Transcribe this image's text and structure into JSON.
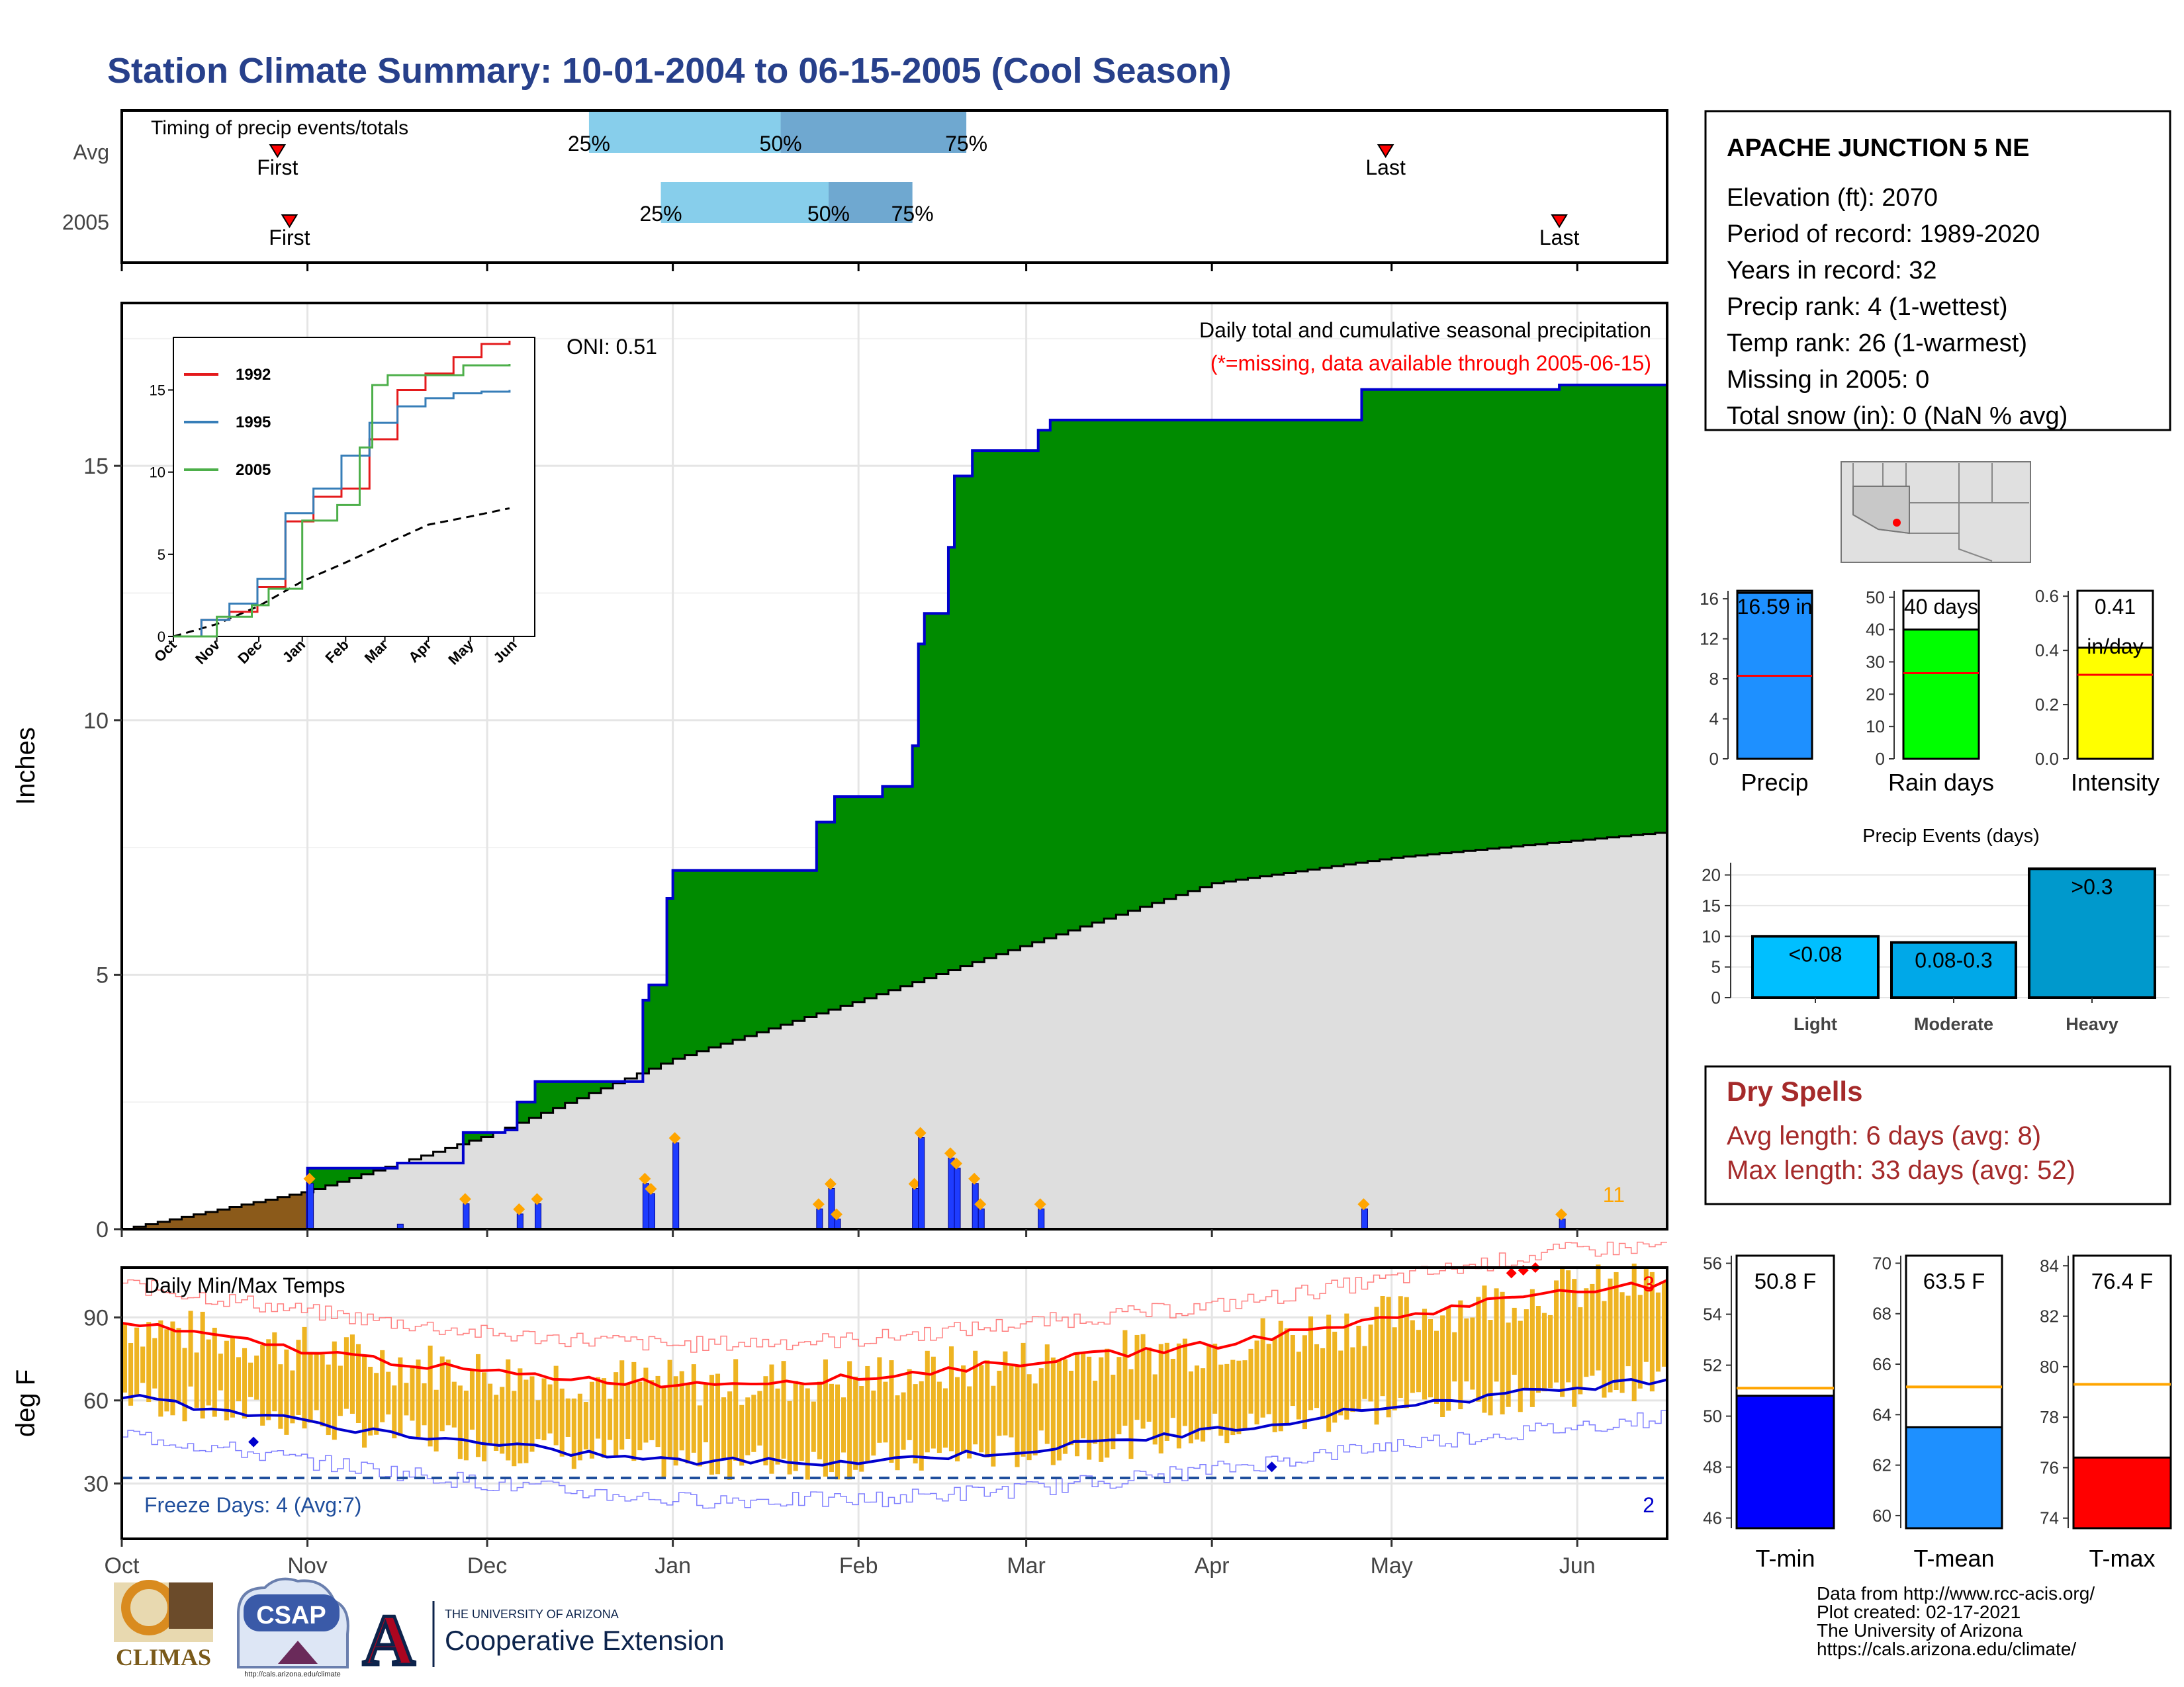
{
  "title": "Station Climate Summary: 10-01-2004 to 06-15-2005 (Cool Season)",
  "timing_panel": {
    "label": "Timing of precip events/totals",
    "rows": [
      {
        "name": "Avg",
        "first": "2004-10-27",
        "last": "2005-04-30",
        "q25": "2004-12-18",
        "q50": "2005-01-19",
        "q75": "2005-02-19"
      },
      {
        "name": "2005",
        "first": "2004-10-29",
        "last": "2005-05-29",
        "q25": "2004-12-30",
        "q50": "2005-01-27",
        "q75": "2005-02-10"
      }
    ],
    "first_label": "First",
    "last_label": "Last",
    "q_labels": [
      "25%",
      "50%",
      "75%"
    ]
  },
  "main_panel": {
    "ylabel": "Inches",
    "subtitle": "Daily total and cumulative seasonal precipitation",
    "missing_note": "(*=missing, data available through 2005-06-15)",
    "oni": "ONI: 0.51",
    "count_label": "11",
    "yticks": [
      "0",
      "5",
      "10",
      "15"
    ],
    "xticks": [
      "Oct",
      "Nov",
      "Dec",
      "Jan",
      "Feb",
      "Mar",
      "Apr",
      "May",
      "Jun"
    ]
  },
  "inset": {
    "legend": [
      "1992",
      "1995",
      "2005"
    ],
    "yticks": [
      "0",
      "5",
      "10",
      "15"
    ],
    "xticks": [
      "Oct",
      "Nov",
      "Dec",
      "Jan",
      "Feb",
      "Mar",
      "Apr",
      "May",
      "Jun"
    ]
  },
  "temp_panel": {
    "label": "Daily Min/Max Temps",
    "ylabel": "deg F",
    "yticks": [
      "30",
      "60",
      "90"
    ],
    "freeze_text": "Freeze Days: 4 (Avg:7)",
    "max_count": "3",
    "min_count": "2"
  },
  "station": {
    "name": "APACHE JUNCTION 5 NE",
    "lines": [
      "Elevation (ft): 2070",
      "Period of record: 1989-2020",
      "Years in record: 32",
      "Precip rank: 4 (1-wettest)",
      "Temp rank: 26 (1-warmest)",
      "Missing in 2005: 0",
      "Total snow (in): 0 (NaN % avg)"
    ]
  },
  "mini_bars": [
    {
      "name": "Precip",
      "value": 16.59,
      "avg": 8.3,
      "label": "16.59 in",
      "color": "#1e90ff",
      "ticks": [
        "0",
        "4",
        "8",
        "12",
        "16"
      ],
      "max": 16.8
    },
    {
      "name": "Rain days",
      "value": 40,
      "avg": 26.5,
      "label": "40 days",
      "color": "#00ff00",
      "ticks": [
        "0",
        "10",
        "20",
        "30",
        "40",
        "50"
      ],
      "max": 52
    },
    {
      "name": "Intensity",
      "value": 0.41,
      "avg": 0.31,
      "label": "0.41",
      "unit": "in/day",
      "color": "#ffff00",
      "ticks": [
        "0.0",
        "0.2",
        "0.4",
        "0.6"
      ],
      "max": 0.62
    }
  ],
  "events": {
    "title": "Precip Events (days)",
    "yticks": [
      "0",
      "5",
      "10",
      "15",
      "20"
    ],
    "categories": [
      "Light",
      "Moderate",
      "Heavy"
    ],
    "labels": [
      "<0.08",
      "0.08-0.3",
      ">0.3"
    ],
    "values": [
      10,
      9,
      21
    ],
    "colors": [
      "#00bfff",
      "#00a8e8",
      "#0099cc"
    ]
  },
  "dry_spells": {
    "title": "Dry Spells",
    "lines": [
      "Avg length: 6 days (avg: 8)",
      "Max length: 33 days (avg: 52)"
    ]
  },
  "temp_bars": [
    {
      "name": "T-min",
      "label": "50.8 F",
      "value": 50.8,
      "avg": 51.1,
      "color": "#0000ff",
      "ticks": [
        "46",
        "48",
        "50",
        "52",
        "54",
        "56"
      ],
      "min": 45.6,
      "max": 56.3
    },
    {
      "name": "T-mean",
      "label": "63.5 F",
      "value": 63.5,
      "avg": 65.1,
      "color": "#1e90ff",
      "ticks": [
        "60",
        "62",
        "64",
        "66",
        "68",
        "70"
      ],
      "min": 59.5,
      "max": 70.3
    },
    {
      "name": "T-max",
      "label": "76.4 F",
      "value": 76.4,
      "avg": 79.3,
      "color": "#ff0000",
      "ticks": [
        "74",
        "76",
        "78",
        "80",
        "82",
        "84"
      ],
      "min": 73.6,
      "max": 84.4
    }
  ],
  "footer": [
    "Data from http://www.rcc-acis.org/",
    "Plot created: 02-17-2021",
    "The University of Arizona",
    "https://cals.arizona.edu/climate/"
  ],
  "logos": {
    "climas": "CLIMAS",
    "csap": "CSAP",
    "csap_url": "http://cals.arizona.edu/climate",
    "ua_small": "THE UNIVERSITY OF ARIZONA",
    "ua_big": "Cooperative Extension"
  },
  "chart_data": {
    "type": "area",
    "title": "Daily total and cumulative seasonal precipitation",
    "ylabel": "Inches",
    "ylim": [
      0,
      18.2
    ],
    "x_start": "2004-10-01",
    "x_end": "2005-06-15",
    "cumulative_2005": [
      {
        "date": "2004-10-31",
        "value": 0.0
      },
      {
        "date": "2004-11-01",
        "value": 1.2
      },
      {
        "date": "2004-11-16",
        "value": 1.3
      },
      {
        "date": "2004-11-27",
        "value": 1.9
      },
      {
        "date": "2004-12-04",
        "value": 1.95
      },
      {
        "date": "2004-12-06",
        "value": 2.5
      },
      {
        "date": "2004-12-09",
        "value": 2.9
      },
      {
        "date": "2004-12-27",
        "value": 4.5
      },
      {
        "date": "2004-12-28",
        "value": 4.8
      },
      {
        "date": "2004-12-31",
        "value": 6.5
      },
      {
        "date": "2005-01-01",
        "value": 7.05
      },
      {
        "date": "2005-01-25",
        "value": 8.0
      },
      {
        "date": "2005-01-28",
        "value": 8.5
      },
      {
        "date": "2005-02-05",
        "value": 8.7
      },
      {
        "date": "2005-02-10",
        "value": 9.5
      },
      {
        "date": "2005-02-11",
        "value": 11.5
      },
      {
        "date": "2005-02-12",
        "value": 12.1
      },
      {
        "date": "2005-02-16",
        "value": 13.4
      },
      {
        "date": "2005-02-17",
        "value": 14.8
      },
      {
        "date": "2005-02-20",
        "value": 15.3
      },
      {
        "date": "2005-03-03",
        "value": 15.7
      },
      {
        "date": "2005-03-05",
        "value": 15.9
      },
      {
        "date": "2005-04-26",
        "value": 16.5
      },
      {
        "date": "2005-05-29",
        "value": 16.59
      }
    ],
    "cumulative_avg": [
      {
        "date": "2004-10-01",
        "value": 0
      },
      {
        "date": "2004-11-01",
        "value": 0.75
      },
      {
        "date": "2004-12-01",
        "value": 1.85
      },
      {
        "date": "2005-01-01",
        "value": 3.35
      },
      {
        "date": "2005-02-01",
        "value": 4.5
      },
      {
        "date": "2005-03-01",
        "value": 5.6
      },
      {
        "date": "2005-04-01",
        "value": 6.8
      },
      {
        "date": "2005-05-01",
        "value": 7.3
      },
      {
        "date": "2005-06-15",
        "value": 7.8
      }
    ],
    "daily_2005": [
      {
        "date": "2004-11-01",
        "value": 0.9
      },
      {
        "date": "2004-11-16",
        "value": 0.1
      },
      {
        "date": "2004-11-27",
        "value": 0.5
      },
      {
        "date": "2004-12-06",
        "value": 0.3
      },
      {
        "date": "2004-12-09",
        "value": 0.5
      },
      {
        "date": "2004-12-27",
        "value": 0.9
      },
      {
        "date": "2004-12-28",
        "value": 0.7
      },
      {
        "date": "2005-01-01",
        "value": 1.7
      },
      {
        "date": "2005-01-25",
        "value": 0.4
      },
      {
        "date": "2005-01-27",
        "value": 0.8
      },
      {
        "date": "2005-01-28",
        "value": 0.2
      },
      {
        "date": "2005-02-10",
        "value": 0.8
      },
      {
        "date": "2005-02-11",
        "value": 1.8
      },
      {
        "date": "2005-02-16",
        "value": 1.4
      },
      {
        "date": "2005-02-17",
        "value": 1.2
      },
      {
        "date": "2005-02-20",
        "value": 0.9
      },
      {
        "date": "2005-02-21",
        "value": 0.4
      },
      {
        "date": "2005-03-03",
        "value": 0.4
      },
      {
        "date": "2005-04-26",
        "value": 0.4
      },
      {
        "date": "2005-05-29",
        "value": 0.2
      }
    ],
    "inset_series": [
      {
        "name": "1992",
        "color": "#e41a1c",
        "points": [
          [
            0,
            0
          ],
          [
            20,
            1
          ],
          [
            40,
            1.5
          ],
          [
            60,
            3
          ],
          [
            80,
            7
          ],
          [
            100,
            8.5
          ],
          [
            120,
            9
          ],
          [
            140,
            12
          ],
          [
            160,
            15
          ],
          [
            180,
            16
          ],
          [
            200,
            17
          ],
          [
            220,
            17.8
          ],
          [
            240,
            18
          ]
        ]
      },
      {
        "name": "1995",
        "color": "#377eb8",
        "points": [
          [
            0,
            0
          ],
          [
            20,
            1
          ],
          [
            40,
            2
          ],
          [
            60,
            3.5
          ],
          [
            80,
            7.5
          ],
          [
            100,
            9
          ],
          [
            120,
            11
          ],
          [
            140,
            13
          ],
          [
            160,
            14
          ],
          [
            180,
            14.5
          ],
          [
            200,
            14.8
          ],
          [
            220,
            14.9
          ],
          [
            240,
            15
          ]
        ]
      },
      {
        "name": "2005",
        "color": "#4daf4a",
        "points": [
          [
            0,
            0
          ],
          [
            31,
            1.2
          ],
          [
            56,
            1.9
          ],
          [
            68,
            2.9
          ],
          [
            92,
            7.05
          ],
          [
            117,
            8
          ],
          [
            133,
            11.5
          ],
          [
            142,
            15.3
          ],
          [
            153,
            15.9
          ],
          [
            207,
            16.5
          ],
          [
            240,
            16.59
          ]
        ]
      }
    ],
    "inset_avg": [
      [
        0,
        0
      ],
      [
        31,
        0.75
      ],
      [
        61,
        1.85
      ],
      [
        92,
        3.35
      ],
      [
        123,
        4.5
      ],
      [
        151,
        5.6
      ],
      [
        182,
        6.8
      ],
      [
        212,
        7.3
      ],
      [
        240,
        7.8
      ]
    ],
    "temp_ylim": [
      10,
      108
    ],
    "tmax_avg": [
      [
        0,
        88
      ],
      [
        31,
        78
      ],
      [
        61,
        70
      ],
      [
        92,
        66
      ],
      [
        123,
        68
      ],
      [
        151,
        74
      ],
      [
        182,
        80
      ],
      [
        212,
        90
      ],
      [
        240,
        100
      ],
      [
        258,
        102
      ]
    ],
    "tmin_avg": [
      [
        0,
        62
      ],
      [
        31,
        52
      ],
      [
        61,
        44
      ],
      [
        92,
        38
      ],
      [
        123,
        38
      ],
      [
        151,
        42
      ],
      [
        182,
        49
      ],
      [
        212,
        58
      ],
      [
        240,
        64
      ],
      [
        258,
        68
      ]
    ]
  }
}
